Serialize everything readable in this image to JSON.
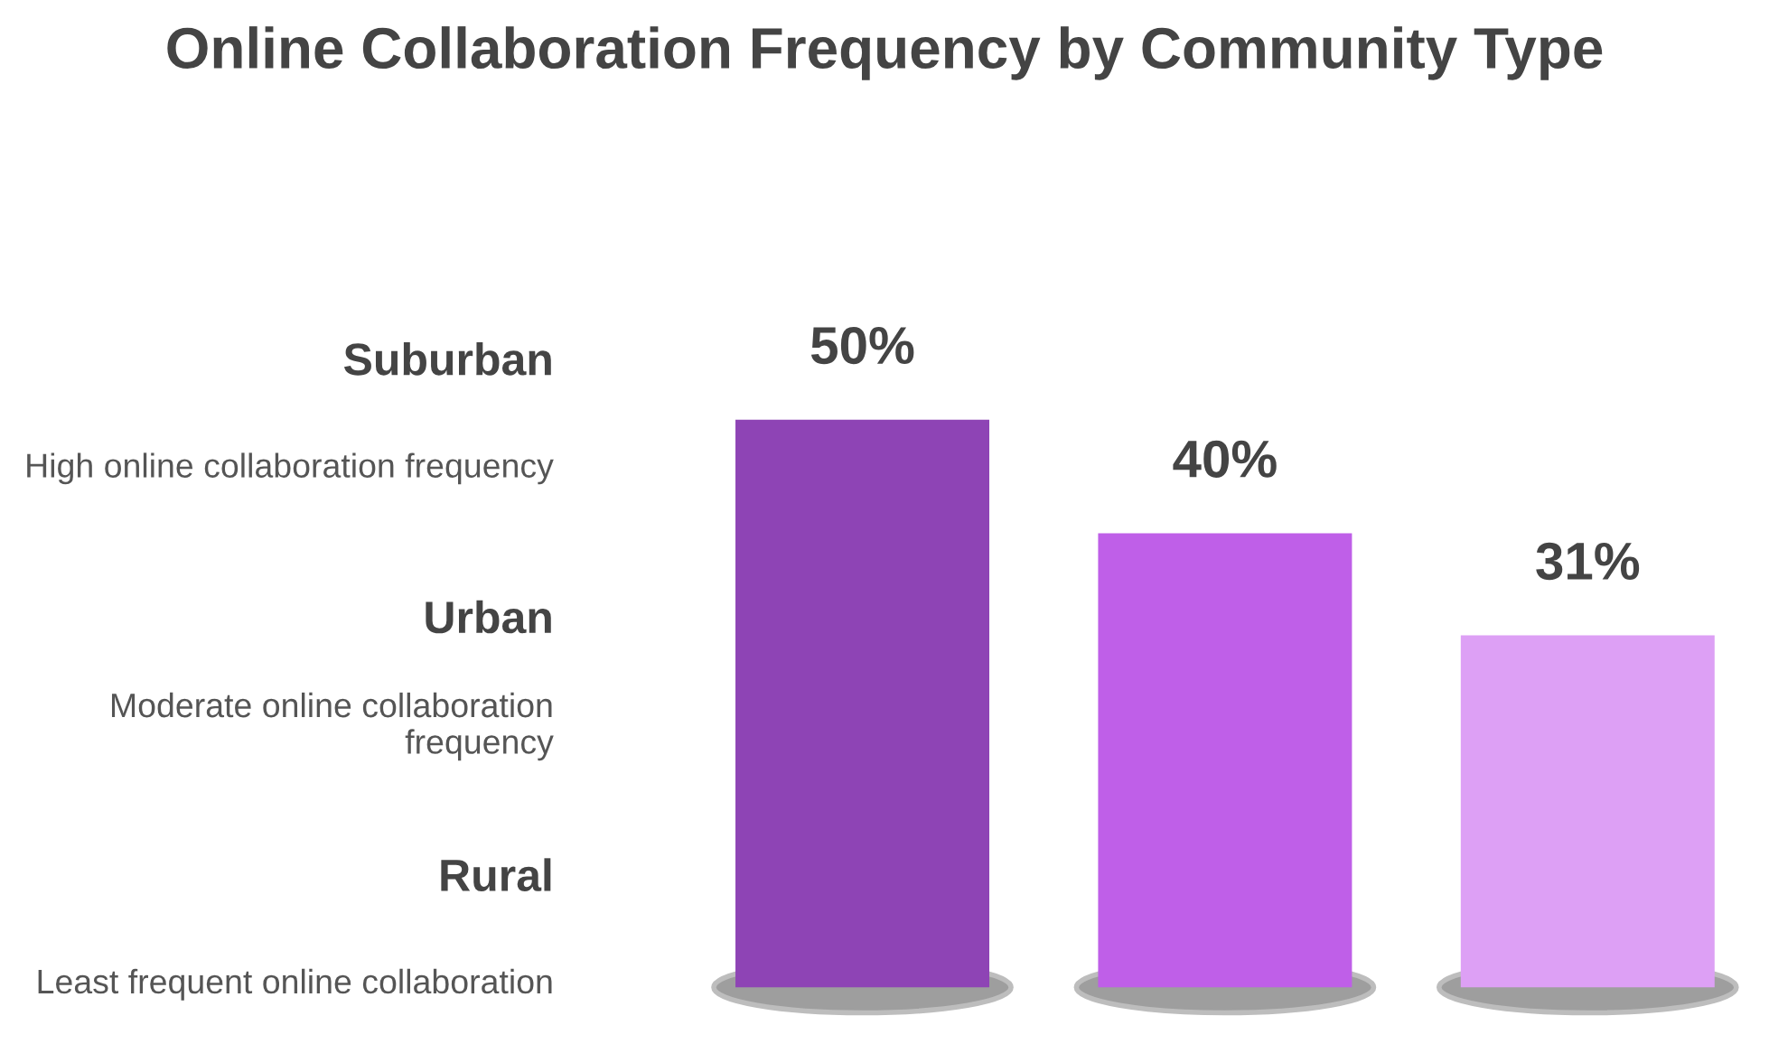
{
  "chart_data": {
    "type": "bar",
    "title": "Online Collaboration Frequency by Community Type",
    "categories": [
      null,
      null,
      null
    ],
    "values": [
      50,
      40,
      31
    ],
    "colors": [
      "#8e44b5",
      "#bf5fe8",
      "#dda0f5"
    ],
    "value_labels": [
      "50%",
      "40%",
      "31%"
    ],
    "annotations": [
      "Suburban",
      "High online collaboration frequency",
      "Urban",
      "Moderate online collaboration frequency",
      "Rural",
      "Least frequent online collaboration"
    ]
  }
}
